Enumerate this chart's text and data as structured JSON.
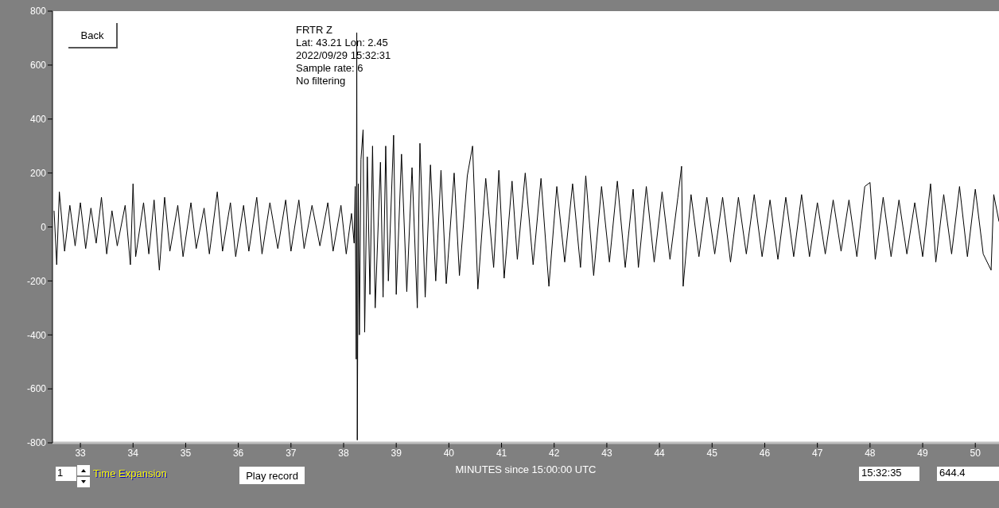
{
  "chart_data": {
    "type": "line",
    "title": "FRTR  Z",
    "xlabel": "MINUTES since 15:00:00 UTC",
    "annotations": [
      "Lat: 43.21 Lon: 2.45",
      "2022/09/29 15:32:31",
      "Sample rate: 6",
      "No filtering",
      "Back",
      "1",
      "Time Expansion",
      "Play record",
      "15:32:35",
      "644.4"
    ],
    "x": [
      32.5,
      32.55,
      32.6,
      32.7,
      32.8,
      32.9,
      33.0,
      33.1,
      33.2,
      33.3,
      33.4,
      33.5,
      33.6,
      33.7,
      33.85,
      33.95,
      34.0,
      34.05,
      34.2,
      34.3,
      34.4,
      34.5,
      34.6,
      34.7,
      34.85,
      34.95,
      35.1,
      35.2,
      35.35,
      35.45,
      35.6,
      35.7,
      35.85,
      35.95,
      36.1,
      36.2,
      36.35,
      36.45,
      36.6,
      36.75,
      36.9,
      37.0,
      37.15,
      37.25,
      37.4,
      37.55,
      37.7,
      37.8,
      37.95,
      38.05,
      38.15,
      38.2,
      38.22,
      38.24,
      38.25,
      38.26,
      38.28,
      38.3,
      38.33,
      38.37,
      38.4,
      38.45,
      38.5,
      38.55,
      38.6,
      38.7,
      38.75,
      38.8,
      38.85,
      38.95,
      39.0,
      39.1,
      39.2,
      39.3,
      39.4,
      39.45,
      39.55,
      39.65,
      39.75,
      39.85,
      39.95,
      40.1,
      40.2,
      40.35,
      40.45,
      40.55,
      40.7,
      40.85,
      40.95,
      41.05,
      41.2,
      41.3,
      41.45,
      41.6,
      41.75,
      41.9,
      42.05,
      42.2,
      42.35,
      42.5,
      42.6,
      42.75,
      42.9,
      43.05,
      43.2,
      43.35,
      43.5,
      43.6,
      43.75,
      43.9,
      44.05,
      44.2,
      44.35,
      44.42,
      44.45,
      44.6,
      44.75,
      44.9,
      45.05,
      45.2,
      45.35,
      45.5,
      45.65,
      45.8,
      45.95,
      46.1,
      46.25,
      46.4,
      46.55,
      46.7,
      46.85,
      47.0,
      47.15,
      47.3,
      47.45,
      47.6,
      47.75,
      47.9,
      48.0,
      48.1,
      48.25,
      48.4,
      48.55,
      48.7,
      48.85,
      49.0,
      49.15,
      49.25,
      49.4,
      49.55,
      49.7,
      49.85,
      50.0,
      50.15,
      50.3,
      50.35,
      50.45
    ],
    "series": [
      {
        "color": "#000000",
        "values": [
          60,
          -140,
          130,
          -90,
          80,
          -70,
          90,
          -80,
          70,
          -60,
          110,
          -100,
          60,
          -70,
          80,
          -140,
          160,
          -110,
          90,
          -100,
          100,
          -160,
          110,
          -90,
          80,
          -110,
          90,
          -80,
          70,
          -100,
          130,
          -90,
          90,
          -110,
          80,
          -90,
          110,
          -100,
          90,
          -80,
          100,
          -90,
          100,
          -80,
          80,
          -70,
          90,
          -90,
          80,
          -100,
          50,
          -60,
          150,
          -490,
          720,
          -790,
          160,
          -400,
          250,
          360,
          -390,
          260,
          -250,
          300,
          -300,
          240,
          -260,
          300,
          -200,
          340,
          -250,
          270,
          -240,
          220,
          -300,
          310,
          -260,
          230,
          -200,
          210,
          -210,
          200,
          -180,
          190,
          300,
          -230,
          180,
          -150,
          210,
          -190,
          170,
          -120,
          200,
          -140,
          180,
          -220,
          150,
          -130,
          160,
          -150,
          190,
          -180,
          150,
          -130,
          170,
          -150,
          140,
          -150,
          150,
          -130,
          130,
          -120,
          110,
          225,
          -220,
          120,
          -110,
          110,
          -100,
          110,
          -130,
          110,
          -100,
          120,
          -110,
          100,
          -120,
          110,
          -110,
          120,
          -110,
          90,
          -100,
          100,
          -90,
          100,
          -110,
          150,
          165,
          -120,
          110,
          -110,
          100,
          -100,
          90,
          -110,
          160,
          -130,
          120,
          -100,
          150,
          -110,
          140,
          -100,
          -160,
          120,
          20
        ]
      }
    ],
    "xlim": [
      32.47,
      50.45
    ],
    "xticks": [
      33,
      34,
      35,
      36,
      37,
      38,
      39,
      40,
      41,
      42,
      43,
      44,
      45,
      46,
      47,
      48,
      49,
      50
    ],
    "ylim": [
      -800,
      800
    ],
    "yticks": [
      -800,
      -600,
      -400,
      -200,
      0,
      200,
      400,
      600,
      800
    ],
    "grid": false,
    "legend": false,
    "marker": "none",
    "line_style": "solid"
  }
}
